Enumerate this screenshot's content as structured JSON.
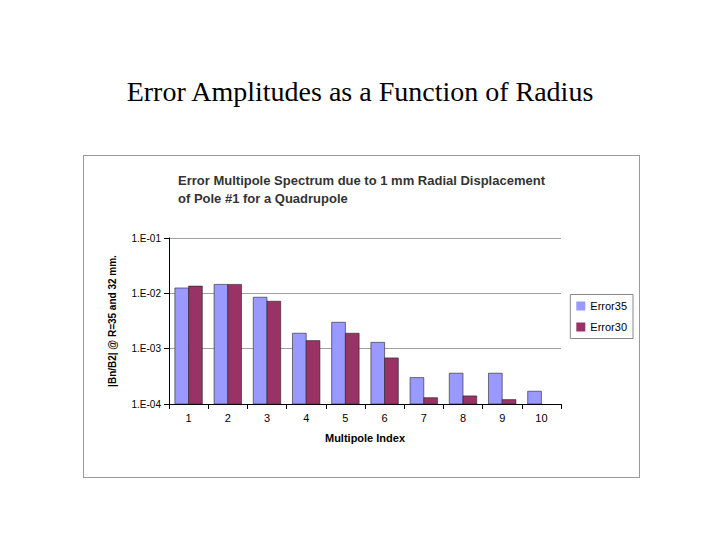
{
  "page_title": "Error Amplitudes as a Function of Radius",
  "chart_data": {
    "type": "bar",
    "title": "Error Multipole Spectrum due to 1 mm Radial Displacement\nof Pole #1 for a Quadrupole",
    "x_label": "Multipole Index",
    "y_label": "|Bn/B2| @ R=35 and 32 mm.",
    "categories": [
      "1",
      "2",
      "3",
      "4",
      "5",
      "6",
      "7",
      "8",
      "9",
      "10"
    ],
    "series": [
      {
        "name": "Error35",
        "color": "#9999ff",
        "values": [
          0.0125,
          0.0145,
          0.0085,
          0.0019,
          0.003,
          0.0013,
          0.0003,
          0.00036,
          0.00036,
          0.00017
        ]
      },
      {
        "name": "Error30",
        "color": "#993366",
        "values": [
          0.0135,
          0.0145,
          0.0072,
          0.0014,
          0.0019,
          0.00068,
          0.00013,
          0.00014,
          0.00012,
          null
        ]
      }
    ],
    "ylim": [
      0.0001,
      0.1
    ],
    "yticks": [
      {
        "value": 0.0001,
        "label": "1.E-04"
      },
      {
        "value": 0.001,
        "label": "1.E-03"
      },
      {
        "value": 0.01,
        "label": "1.E-02"
      },
      {
        "value": 0.1,
        "label": "1.E-01"
      }
    ],
    "log": "y",
    "grid": true,
    "legend": "right"
  }
}
